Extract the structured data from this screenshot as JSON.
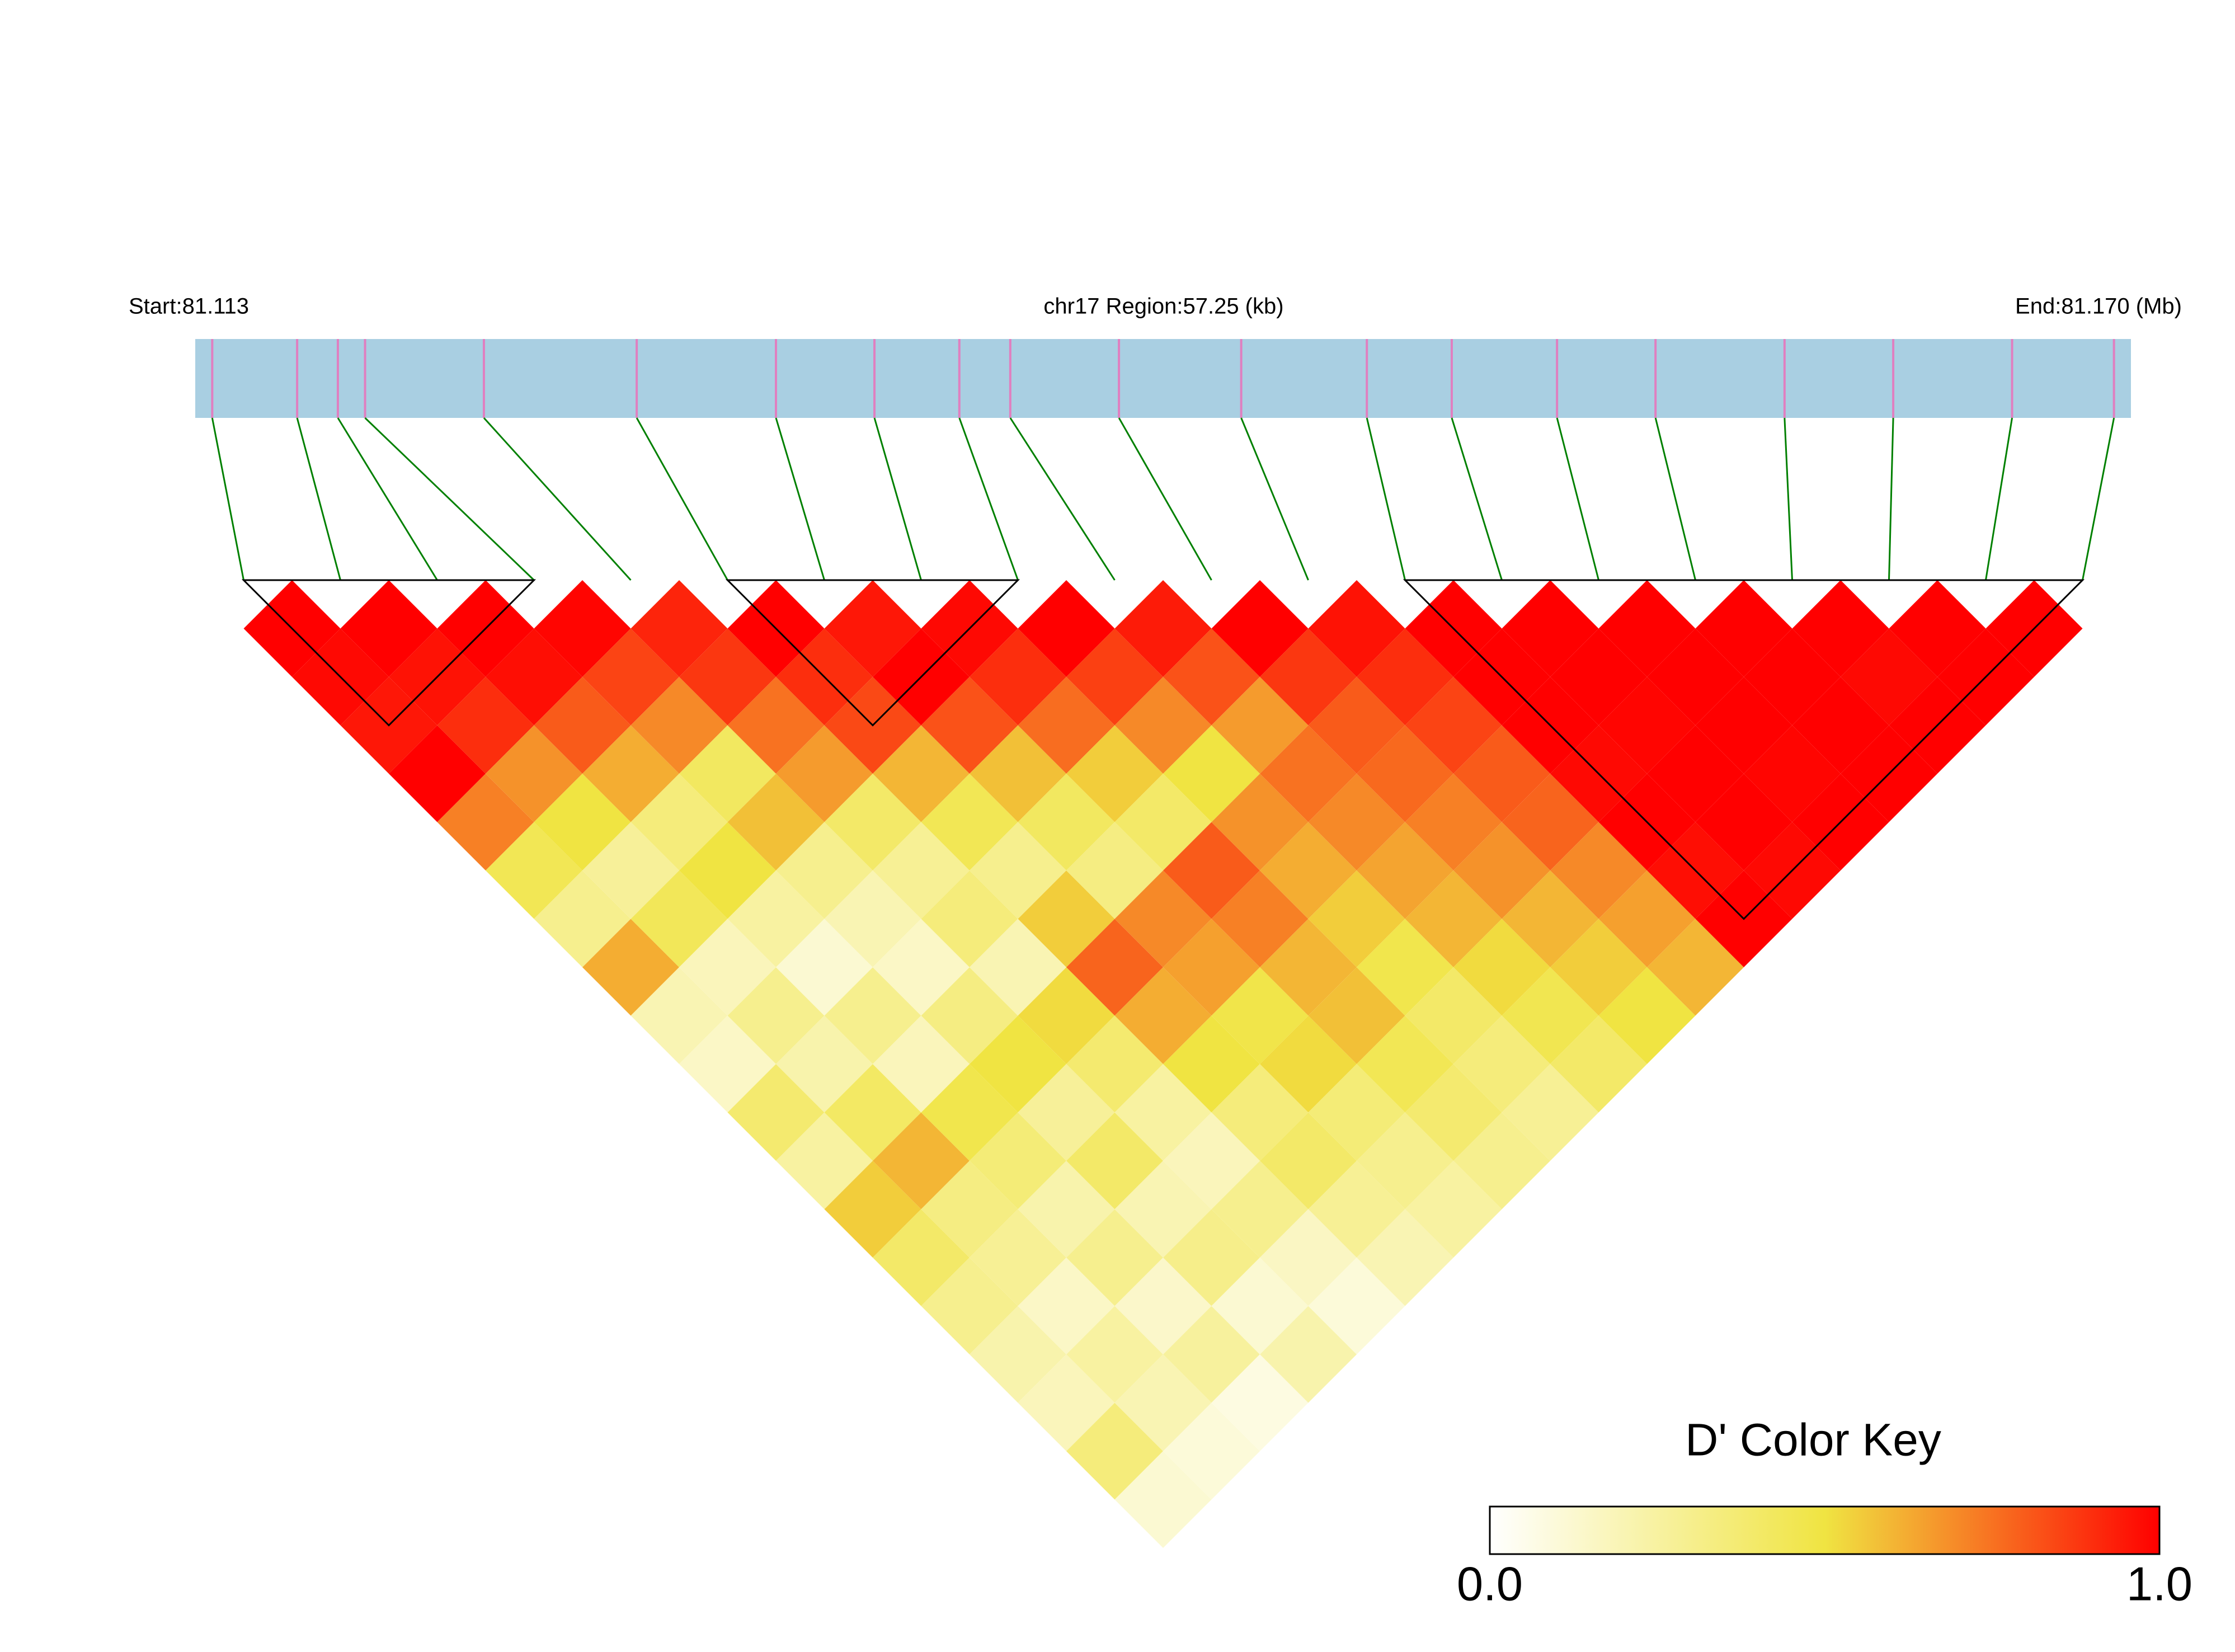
{
  "chart_data": {
    "type": "ld-heatmap",
    "start_label": "Start:81.113",
    "region_label": "chr17 Region:57.25 (kb)",
    "end_label": "End:81.170 (Mb)",
    "xlim": [
      81.113,
      81.17
    ],
    "positions": [
      81.1135,
      81.116,
      81.1172,
      81.118,
      81.1215,
      81.126,
      81.1301,
      81.133,
      81.1355,
      81.137,
      81.1402,
      81.1438,
      81.1475,
      81.15,
      81.1531,
      81.156,
      81.1598,
      81.163,
      81.1665,
      81.1695
    ],
    "d_prime": [
      [
        1,
        0.98,
        0.95,
        1,
        0.72,
        0.45,
        0.3,
        0.62,
        0.2,
        0.15,
        0.38,
        0.25,
        0.55,
        0.4,
        0.3,
        0.22,
        0.18,
        0.35,
        0.12
      ],
      [
        1,
        0.96,
        0.9,
        0.68,
        0.5,
        0.27,
        0.44,
        0.18,
        0.3,
        0.22,
        0.41,
        0.6,
        0.33,
        0.28,
        0.15,
        0.25,
        0.2,
        0.1
      ],
      [
        1,
        0.97,
        0.8,
        0.62,
        0.35,
        0.5,
        0.25,
        0.12,
        0.3,
        0.18,
        0.47,
        0.36,
        0.22,
        0.3,
        0.14,
        0.26,
        0.08
      ],
      [
        0.99,
        0.85,
        0.7,
        0.42,
        0.58,
        0.3,
        0.2,
        0.15,
        0.33,
        0.5,
        0.27,
        0.4,
        0.2,
        0.31,
        0.12,
        0.22
      ],
      [
        0.92,
        0.88,
        0.75,
        0.66,
        0.4,
        0.28,
        0.35,
        0.2,
        0.52,
        0.38,
        0.25,
        0.18,
        0.3,
        0.16,
        0.1
      ],
      [
        1,
        0.9,
        0.84,
        0.6,
        0.45,
        0.3,
        0.55,
        0.78,
        0.62,
        0.5,
        0.35,
        0.4,
        0.28,
        0.2
      ],
      [
        0.95,
        1,
        0.82,
        0.58,
        0.42,
        0.33,
        0.7,
        0.65,
        0.48,
        0.52,
        0.36,
        0.3,
        0.25
      ],
      [
        0.98,
        0.9,
        0.76,
        0.55,
        0.4,
        0.8,
        0.72,
        0.6,
        0.58,
        0.45,
        0.38,
        0.3
      ],
      [
        1,
        0.86,
        0.7,
        0.5,
        0.68,
        0.62,
        0.55,
        0.47,
        0.4,
        0.35,
        0.28
      ],
      [
        0.94,
        0.82,
        0.66,
        0.75,
        0.7,
        0.64,
        0.6,
        0.52,
        0.46,
        0.4
      ],
      [
        1,
        0.88,
        0.8,
        0.77,
        0.72,
        0.68,
        0.6,
        0.55,
        0.5
      ],
      [
        0.96,
        0.9,
        0.85,
        0.8,
        0.78,
        0.7,
        0.65,
        0.6
      ],
      [
        1,
        1,
        1,
        0.98,
        1,
        0.97,
        1
      ],
      [
        1,
        1,
        0.99,
        1,
        1,
        0.98
      ],
      [
        1,
        1,
        1,
        0.99,
        1
      ],
      [
        1,
        1,
        1,
        1
      ],
      [
        1,
        0.98,
        1
      ],
      [
        1,
        1
      ],
      [
        1
      ]
    ],
    "blocks": [
      [
        0,
        3
      ],
      [
        5,
        8
      ],
      [
        12,
        19
      ]
    ],
    "bar_color": "#a9cfe2",
    "marker_color": "#e07fc0",
    "link_color": "#008000",
    "colormap": [
      "#ffffff",
      "#f0e442",
      "#ff0000"
    ],
    "colorbar_title": "D' Color Key",
    "colorbar_lim": [
      0,
      1
    ],
    "colorbar_ticks": [
      {
        "value": 0,
        "label": "0.0"
      },
      {
        "value": 1,
        "label": "1.0"
      }
    ]
  }
}
